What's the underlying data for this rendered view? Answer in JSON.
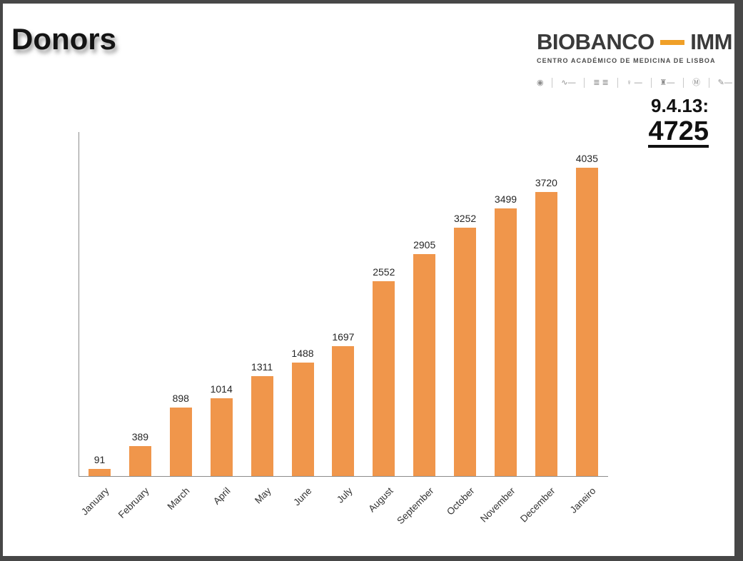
{
  "window": {
    "frame_color": "#474747",
    "slide_background": "#ffffff"
  },
  "header": {
    "title": "Donors",
    "logo": {
      "brand_left": "BIOBANCO",
      "brand_right": "IMM",
      "dash_color": "#F0A028",
      "subtitle": "CENTRO ACADÉMICO DE MEDICINA DE LISBOA",
      "partner_marks": [
        {
          "name": "emblem-seal-icon",
          "glyph": "◉"
        },
        {
          "name": "signature-wordmark-icon",
          "glyph": "∿—"
        },
        {
          "name": "wordmark-columns-icon",
          "glyph": "≣ ≣"
        },
        {
          "name": "pin-wordmark-icon",
          "glyph": "♀ —"
        },
        {
          "name": "crest-wordmark-icon",
          "glyph": "♜—"
        },
        {
          "name": "m-seal-icon",
          "glyph": "Ⓜ"
        },
        {
          "name": "script-wordmark-icon",
          "glyph": "✎—"
        }
      ]
    },
    "snapshot": {
      "date_label": "9.4.13:",
      "total": "4725"
    }
  },
  "chart_data": {
    "type": "bar",
    "title": "Donors",
    "categories": [
      "January",
      "February",
      "March",
      "April",
      "May",
      "June",
      "July",
      "August",
      "September",
      "October",
      "November",
      "December",
      "Janeiro"
    ],
    "values": [
      91,
      389,
      898,
      1014,
      1311,
      1488,
      1697,
      2552,
      2905,
      3252,
      3499,
      3720,
      4035
    ],
    "bar_color": "#F0964B",
    "axis_color": "#8C8C8C",
    "value_label_color": "#262626",
    "tick_label_color": "#333333",
    "ylim": [
      0,
      4500
    ],
    "grid": false,
    "legend": false,
    "value_labels": true,
    "x_label_rotation": 45
  }
}
